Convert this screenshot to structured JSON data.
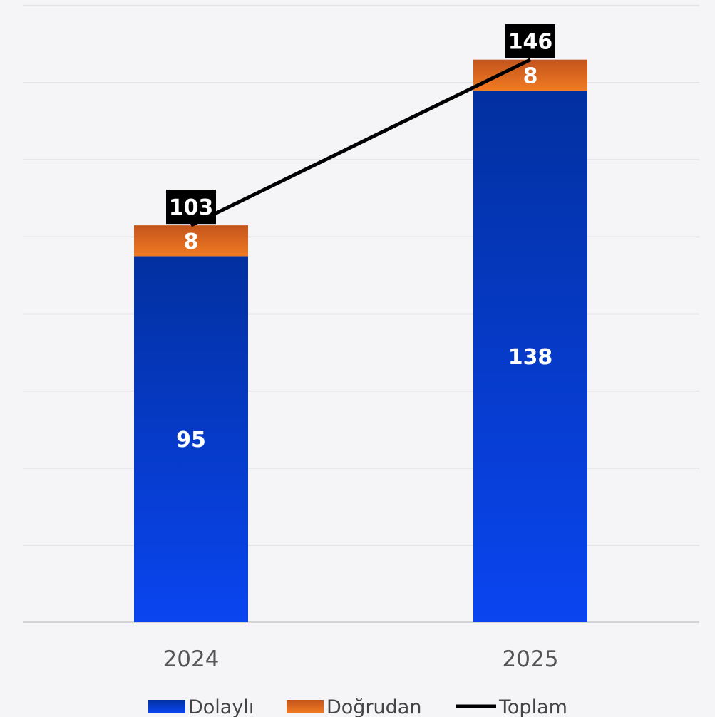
{
  "chart_data": {
    "type": "bar",
    "stacked": true,
    "categories": [
      "2024",
      "2025"
    ],
    "series": [
      {
        "name": "Dolaylı",
        "values": [
          95,
          138
        ],
        "color": "#0a45f0",
        "color_top": "#0230a0"
      },
      {
        "name": "Doğrudan",
        "values": [
          8,
          8
        ],
        "color": "#f07a22",
        "color_top": "#c4541c"
      },
      {
        "name": "Toplam",
        "type": "line",
        "values": [
          103,
          146
        ],
        "color": "#000000"
      }
    ],
    "ylim": [
      0,
      160
    ],
    "grid": true,
    "legend_position": "bottom"
  }
}
